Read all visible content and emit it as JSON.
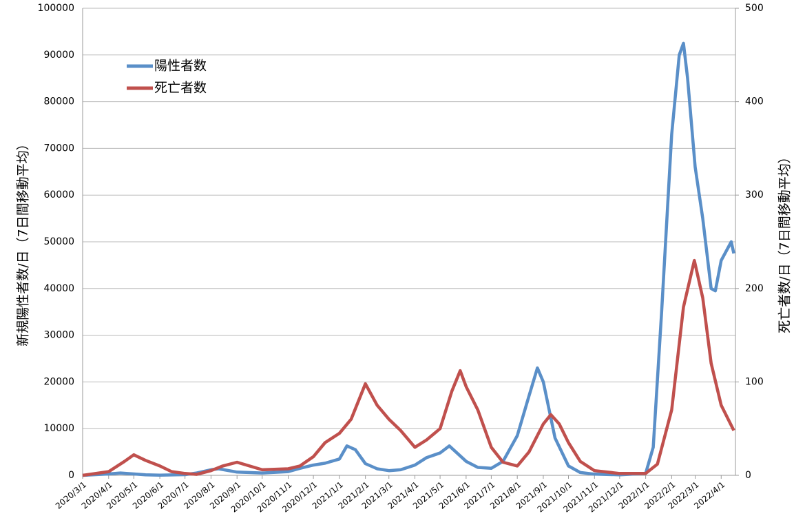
{
  "chart_data": {
    "type": "line",
    "ylabel": "新規陽性者数/日（7日間移動平均）",
    "y2label": "死亡者数/日（7日間移動平均）",
    "xlim": [
      "2020/3/1",
      "2022/4/18"
    ],
    "xticks": [
      "2020/3/1",
      "2020/4/1",
      "2020/5/1",
      "2020/6/1",
      "2020/7/1",
      "2020/8/1",
      "2020/9/1",
      "2020/10/1",
      "2020/11/1",
      "2020/12/1",
      "2021/1/1",
      "2021/2/1",
      "2021/3/1",
      "2021/4/1",
      "2021/5/1",
      "2021/6/1",
      "2021/7/1",
      "2021/8/1",
      "2021/9/1",
      "2021/10/1",
      "2021/11/1",
      "2021/12/1",
      "2022/1/1",
      "2022/2/1",
      "2022/3/1",
      "2022/4/1"
    ],
    "ylim": [
      0,
      100000
    ],
    "yticks": [
      0,
      10000,
      20000,
      30000,
      40000,
      50000,
      60000,
      70000,
      80000,
      90000,
      100000
    ],
    "y2lim": [
      0,
      500
    ],
    "y2ticks": [
      0,
      100,
      200,
      300,
      400,
      500
    ],
    "grid": true,
    "legend": "upper-left",
    "series": [
      {
        "name": "陽性者数",
        "color": "#5a8fc8",
        "x": [
          "2020/3/1",
          "2020/4/1",
          "2020/4/15",
          "2020/5/1",
          "2020/5/15",
          "2020/6/1",
          "2020/7/1",
          "2020/7/15",
          "2020/8/1",
          "2020/8/10",
          "2020/9/1",
          "2020/10/1",
          "2020/11/1",
          "2020/11/15",
          "2020/12/1",
          "2020/12/15",
          "2021/1/1",
          "2021/1/10",
          "2021/1/20",
          "2021/2/1",
          "2021/2/15",
          "2021/3/1",
          "2021/3/15",
          "2021/4/1",
          "2021/4/15",
          "2021/5/1",
          "2021/5/12",
          "2021/6/1",
          "2021/6/15",
          "2021/7/1",
          "2021/7/15",
          "2021/8/1",
          "2021/8/15",
          "2021/8/25",
          "2021/9/1",
          "2021/9/15",
          "2021/10/1",
          "2021/10/15",
          "2021/11/1",
          "2021/12/1",
          "2022/1/1",
          "2022/1/10",
          "2022/1/20",
          "2022/2/1",
          "2022/2/10",
          "2022/2/15",
          "2022/2/20",
          "2022/3/1",
          "2022/3/10",
          "2022/3/20",
          "2022/3/25",
          "2022/4/1",
          "2022/4/13",
          "2022/4/16"
        ],
        "values": [
          0,
          300,
          500,
          300,
          100,
          40,
          150,
          500,
          1200,
          1400,
          700,
          500,
          800,
          1500,
          2200,
          2600,
          3500,
          6300,
          5500,
          2500,
          1400,
          1000,
          1200,
          2200,
          3800,
          4800,
          6300,
          3000,
          1700,
          1500,
          3000,
          8500,
          17000,
          23000,
          20000,
          8000,
          2000,
          600,
          250,
          120,
          400,
          6000,
          35000,
          73000,
          90000,
          92500,
          85000,
          66000,
          55000,
          40000,
          39500,
          46000,
          50000,
          47500
        ]
      },
      {
        "name": "死亡者数",
        "color": "#c0504d",
        "axis": "y2",
        "x": [
          "2020/3/1",
          "2020/4/1",
          "2020/4/20",
          "2020/5/1",
          "2020/5/15",
          "2020/6/1",
          "2020/6/15",
          "2020/7/1",
          "2020/7/15",
          "2020/8/1",
          "2020/8/15",
          "2020/9/1",
          "2020/10/1",
          "2020/11/1",
          "2020/11/15",
          "2020/12/1",
          "2020/12/15",
          "2021/1/1",
          "2021/1/15",
          "2021/2/1",
          "2021/2/15",
          "2021/3/1",
          "2021/3/15",
          "2021/4/1",
          "2021/4/15",
          "2021/5/1",
          "2021/5/15",
          "2021/5/25",
          "2021/6/1",
          "2021/6/15",
          "2021/7/1",
          "2021/7/15",
          "2021/8/1",
          "2021/8/15",
          "2021/9/1",
          "2021/9/10",
          "2021/9/20",
          "2021/10/1",
          "2021/10/15",
          "2021/11/1",
          "2021/12/1",
          "2022/1/1",
          "2022/1/15",
          "2022/2/1",
          "2022/2/15",
          "2022/2/28",
          "2022/3/10",
          "2022/3/20",
          "2022/4/1",
          "2022/4/16"
        ],
        "values": [
          0,
          4,
          15,
          22,
          16,
          10,
          4,
          2,
          1,
          5,
          10,
          14,
          6,
          7,
          10,
          20,
          35,
          45,
          60,
          98,
          75,
          60,
          48,
          30,
          38,
          50,
          90,
          112,
          95,
          70,
          30,
          14,
          10,
          25,
          55,
          65,
          55,
          35,
          15,
          5,
          2,
          2,
          12,
          70,
          180,
          230,
          190,
          120,
          75,
          48
        ]
      }
    ]
  }
}
